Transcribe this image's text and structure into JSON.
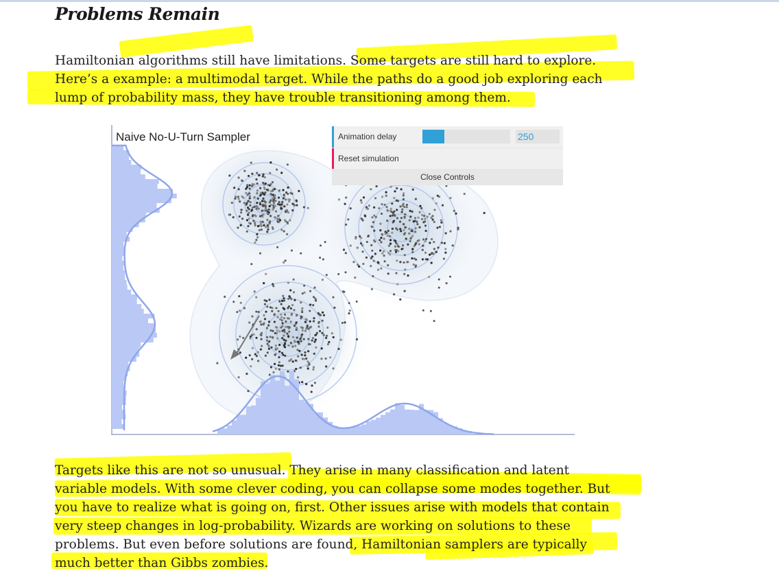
{
  "section": {
    "heading": "Problems Remain"
  },
  "paragraph1": [
    "Hamiltonian algorithms still have limitations. Some targets are still hard to explore.",
    "Here’s a example: a multimodal target. While the paths do a good job exploring each",
    "lump of probability mass, they have trouble transitioning among them."
  ],
  "figure": {
    "title": "Naive No-U-Turn Sampler",
    "controls": {
      "animation_delay_label": "Animation delay",
      "animation_delay_value": "250",
      "animation_delay_fraction": 0.25,
      "reset_label": "Reset simulation",
      "close_label": "Close Controls"
    },
    "colors": {
      "histogram": "#b9c8f5",
      "density_line": "#8fa6ea",
      "accent_blue": "#2fa1d6",
      "accent_red": "#e61d5f"
    }
  },
  "paragraph2": [
    "Targets like this are not so unusual. They arise in many classification and latent",
    "variable models. With some clever coding, you can collapse some modes together. But",
    "you have to realize what is going on, first. Other issues arise with models that contain",
    "very steep changes in log-probability. Wizards are working on solutions to these",
    "problems. But even before solutions are found, Hamiltonian samplers are typically",
    "much better than Gibbs zombies."
  ]
}
